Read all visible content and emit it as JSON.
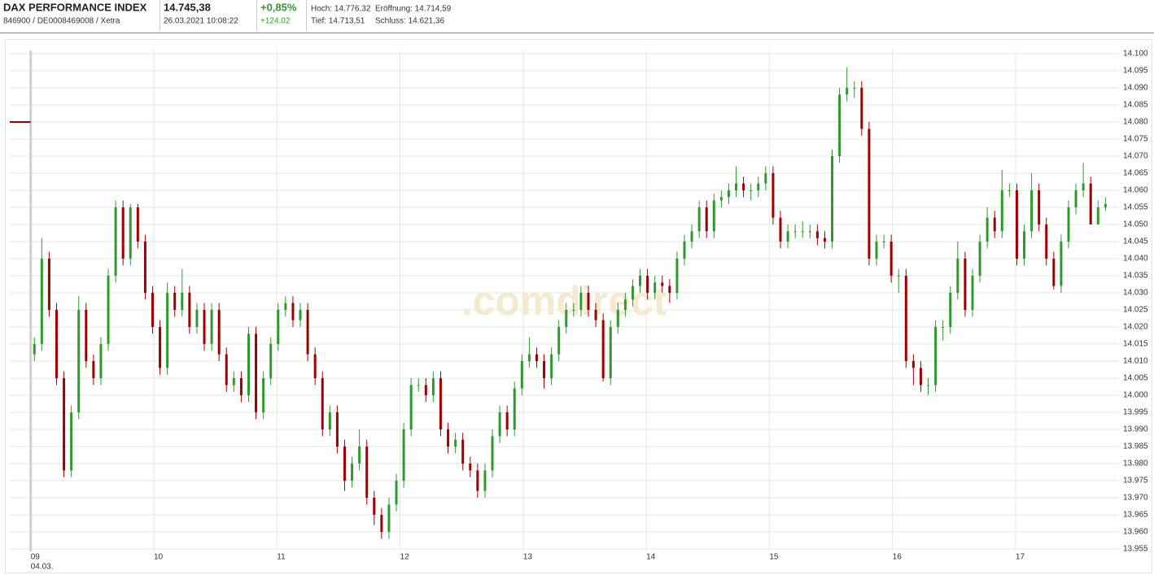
{
  "header": {
    "title": "DAX PERFORMANCE INDEX",
    "subtitle": "846900 / DE0008469008 / Xetra",
    "price": "14.745,38",
    "timestamp": "26.03.2021 10:08:22",
    "change_percent": "+0,85%",
    "change_abs": "+124,02",
    "high": "Hoch: 14.776,32",
    "open": "Eröffnung: 14.714,59",
    "low": "Tief: 14.713,51",
    "close": "Schluss: 14.621,36"
  },
  "chart_data": {
    "type": "candlestick",
    "watermark": ".comdirect",
    "x_start_date": "04.03.",
    "up_color": "#2e9a2e",
    "down_color": "#a00000",
    "grid": true,
    "reference_line": {
      "value": 14080,
      "color": "#a00000"
    },
    "xlim": [
      -0.17,
      8.84
    ],
    "xticks": [
      {
        "value": 0,
        "label": "09"
      },
      {
        "value": 1,
        "label": "10"
      },
      {
        "value": 2,
        "label": "11"
      },
      {
        "value": 3,
        "label": "12"
      },
      {
        "value": 4,
        "label": "13"
      },
      {
        "value": 5,
        "label": "14"
      },
      {
        "value": 6,
        "label": "15"
      },
      {
        "value": 7,
        "label": "16"
      },
      {
        "value": 8,
        "label": "17"
      }
    ],
    "ylim": [
      13955,
      14100
    ],
    "yticks": [
      {
        "value": 13955,
        "label": "13.955"
      },
      {
        "value": 13960,
        "label": "13.960"
      },
      {
        "value": 13965,
        "label": "13.965"
      },
      {
        "value": 13970,
        "label": "13.970"
      },
      {
        "value": 13975,
        "label": "13.975"
      },
      {
        "value": 13980,
        "label": "13.980"
      },
      {
        "value": 13985,
        "label": "13.985"
      },
      {
        "value": 13990,
        "label": "13.990"
      },
      {
        "value": 13995,
        "label": "13.995"
      },
      {
        "value": 14000,
        "label": "14.000"
      },
      {
        "value": 14005,
        "label": "14.005"
      },
      {
        "value": 14010,
        "label": "14.010"
      },
      {
        "value": 14015,
        "label": "14.015"
      },
      {
        "value": 14020,
        "label": "14.020"
      },
      {
        "value": 14025,
        "label": "14.025"
      },
      {
        "value": 14030,
        "label": "14.030"
      },
      {
        "value": 14035,
        "label": "14.035"
      },
      {
        "value": 14040,
        "label": "14.040"
      },
      {
        "value": 14045,
        "label": "14.045"
      },
      {
        "value": 14050,
        "label": "14.050"
      },
      {
        "value": 14055,
        "label": "14.055"
      },
      {
        "value": 14060,
        "label": "14.060"
      },
      {
        "value": 14065,
        "label": "14.065"
      },
      {
        "value": 14070,
        "label": "14.070"
      },
      {
        "value": 14075,
        "label": "14.075"
      },
      {
        "value": 14080,
        "label": "14.080"
      },
      {
        "value": 14085,
        "label": "14.085"
      },
      {
        "value": 14090,
        "label": "14.090"
      },
      {
        "value": 14095,
        "label": "14.095"
      },
      {
        "value": 14100,
        "label": "14.100"
      }
    ],
    "x": [
      0.03,
      0.09,
      0.15,
      0.21,
      0.27,
      0.33,
      0.39,
      0.45,
      0.51,
      0.57,
      0.63,
      0.69,
      0.75,
      0.81,
      0.87,
      0.93,
      0.99,
      1.05,
      1.11,
      1.17,
      1.23,
      1.29,
      1.35,
      1.41,
      1.47,
      1.53,
      1.59,
      1.65,
      1.71,
      1.77,
      1.83,
      1.89,
      1.95,
      2.01,
      2.07,
      2.13,
      2.19,
      2.25,
      2.31,
      2.37,
      2.43,
      2.49,
      2.55,
      2.61,
      2.67,
      2.73,
      2.79,
      2.85,
      2.91,
      2.97,
      3.03,
      3.09,
      3.15,
      3.21,
      3.27,
      3.33,
      3.39,
      3.45,
      3.51,
      3.57,
      3.63,
      3.69,
      3.75,
      3.81,
      3.87,
      3.93,
      3.99,
      4.05,
      4.11,
      4.17,
      4.23,
      4.29,
      4.35,
      4.41,
      4.47,
      4.53,
      4.59,
      4.65,
      4.71,
      4.77,
      4.83,
      4.89,
      4.95,
      5.01,
      5.07,
      5.13,
      5.19,
      5.25,
      5.31,
      5.37,
      5.43,
      5.49,
      5.55,
      5.61,
      5.67,
      5.73,
      5.79,
      5.85,
      5.91,
      5.97,
      6.03,
      6.09,
      6.15,
      6.21,
      6.27,
      6.33,
      6.39,
      6.45,
      6.51,
      6.57,
      6.63,
      6.69,
      6.75,
      6.81,
      6.87,
      6.93,
      6.99,
      7.05,
      7.11,
      7.17,
      7.23,
      7.29,
      7.35,
      7.41,
      7.47,
      7.53,
      7.59,
      7.65,
      7.71,
      7.77,
      7.83,
      7.89,
      7.95,
      8.01,
      8.07,
      8.13,
      8.19,
      8.25,
      8.31,
      8.37,
      8.43,
      8.49,
      8.55,
      8.61,
      8.67,
      8.73
    ],
    "open": [
      14012,
      14015,
      14040,
      14025,
      14005,
      13978,
      13995,
      14025,
      14010,
      14005,
      14015,
      14035,
      14055,
      14040,
      14055,
      14045,
      14030,
      14020,
      14008,
      14030,
      14025,
      14030,
      14020,
      14025,
      14015,
      14025,
      14012,
      14003,
      14005,
      14000,
      14018,
      13995,
      14005,
      14015,
      14025,
      14027,
      14022,
      14025,
      14012,
      14005,
      13990,
      13995,
      13985,
      13975,
      13980,
      13985,
      13970,
      13965,
      13960,
      13968,
      13975,
      13990,
      14003,
      14003,
      14000,
      14005,
      13990,
      13985,
      13987,
      13980,
      13978,
      13972,
      13978,
      13988,
      13995,
      13990,
      14002,
      14010,
      14012,
      14010,
      14005,
      14012,
      14020,
      14025,
      14025,
      14030,
      14025,
      14022,
      14005,
      14020,
      14025,
      14028,
      14032,
      14035,
      14030,
      14033,
      14032,
      14030,
      14040,
      14045,
      14048,
      14055,
      14048,
      14057,
      14058,
      14060,
      14062,
      14060,
      14060,
      14062,
      14065,
      14052,
      14045,
      14048,
      14048,
      14048,
      14048,
      14046,
      14045,
      14070,
      14088,
      14090,
      14090,
      14078,
      14040,
      14045,
      14045,
      14035,
      14035,
      14010,
      14008,
      14003,
      14003,
      14020,
      14020,
      14030,
      14040,
      14025,
      14035,
      14045,
      14052,
      14048,
      14060,
      14060,
      14040,
      14048,
      14060,
      14050,
      14040,
      14032,
      14045,
      14055,
      14060,
      14062,
      14050,
      14055
    ],
    "high": [
      14017,
      14046,
      14042,
      14027,
      14007,
      13997,
      14029,
      14027,
      14012,
      14017,
      14037,
      14057,
      14057,
      14056,
      14056,
      14047,
      14032,
      14022,
      14033,
      14032,
      14037,
      14032,
      14027,
      14027,
      14027,
      14027,
      14014,
      14007,
      14007,
      14020,
      14020,
      14007,
      14017,
      14027,
      14029,
      14029,
      14027,
      14027,
      14014,
      14007,
      13997,
      13997,
      13987,
      13982,
      13990,
      13987,
      13972,
      13967,
      13970,
      13977,
      13992,
      14005,
      14005,
      14005,
      14007,
      14007,
      13992,
      13989,
      13989,
      13982,
      13980,
      13980,
      13990,
      13997,
      13997,
      14004,
      14012,
      14017,
      14014,
      14012,
      14014,
      14022,
      14027,
      14027,
      14032,
      14032,
      14027,
      14024,
      14022,
      14027,
      14030,
      14034,
      14037,
      14037,
      14035,
      14035,
      14034,
      14042,
      14047,
      14050,
      14057,
      14057,
      14059,
      14060,
      14062,
      14067,
      14064,
      14062,
      14064,
      14067,
      14067,
      14054,
      14050,
      14050,
      14051,
      14050,
      14050,
      14048,
      14072,
      14090,
      14096,
      14092,
      14092,
      14080,
      14047,
      14047,
      14047,
      14037,
      14037,
      14012,
      14010,
      14005,
      14022,
      14022,
      14032,
      14045,
      14042,
      14037,
      14047,
      14055,
      14054,
      14066,
      14062,
      14062,
      14050,
      14065,
      14062,
      14052,
      14042,
      14047,
      14057,
      14062,
      14068,
      14064,
      14057,
      14058
    ],
    "low": [
      14010,
      14013,
      14023,
      14003,
      13976,
      13976,
      13993,
      14008,
      14003,
      14003,
      14013,
      14033,
      14038,
      14038,
      14043,
      14028,
      14018,
      14006,
      14006,
      14023,
      14023,
      14018,
      14018,
      14013,
      14013,
      14010,
      14001,
      14001,
      13998,
      13998,
      13993,
      13993,
      14003,
      14013,
      14023,
      14020,
      14020,
      14010,
      14003,
      13988,
      13988,
      13983,
      13972,
      13973,
      13978,
      13968,
      13962,
      13958,
      13958,
      13966,
      13973,
      13988,
      14001,
      13998,
      13998,
      13988,
      13983,
      13983,
      13978,
      13976,
      13970,
      13970,
      13976,
      13986,
      13988,
      13988,
      14000,
      14008,
      14008,
      14002,
      14003,
      14010,
      14018,
      14023,
      14023,
      14023,
      14020,
      14004,
      14003,
      14018,
      14023,
      14026,
      14030,
      14028,
      14028,
      14030,
      14027,
      14028,
      14038,
      14043,
      14046,
      14046,
      14046,
      14055,
      14056,
      14058,
      14058,
      14057,
      14058,
      14060,
      14050,
      14043,
      14043,
      14046,
      14046,
      14046,
      14044,
      14043,
      14043,
      14068,
      14086,
      14087,
      14076,
      14038,
      14038,
      14043,
      14033,
      14030,
      14008,
      14003,
      14001,
      14000,
      14001,
      14016,
      14018,
      14028,
      14023,
      14023,
      14033,
      14043,
      14046,
      14046,
      14058,
      14038,
      14038,
      14046,
      14048,
      14038,
      14031,
      14030,
      14043,
      14053,
      14058,
      14050,
      14050,
      14054
    ],
    "close": [
      14015,
      14040,
      14025,
      14005,
      13978,
      13995,
      14025,
      14010,
      14005,
      14015,
      14035,
      14055,
      14040,
      14055,
      14045,
      14030,
      14020,
      14008,
      14030,
      14025,
      14030,
      14020,
      14025,
      14015,
      14025,
      14012,
      14003,
      14005,
      14000,
      14018,
      13995,
      14005,
      14015,
      14025,
      14027,
      14022,
      14025,
      14012,
      14005,
      13990,
      13995,
      13985,
      13975,
      13980,
      13985,
      13970,
      13965,
      13960,
      13968,
      13975,
      13990,
      14003,
      14003,
      14000,
      14005,
      13990,
      13985,
      13987,
      13980,
      13978,
      13972,
      13978,
      13988,
      13995,
      13990,
      14002,
      14010,
      14012,
      14010,
      14005,
      14012,
      14020,
      14025,
      14025,
      14030,
      14025,
      14022,
      14005,
      14020,
      14025,
      14028,
      14032,
      14035,
      14030,
      14033,
      14032,
      14030,
      14040,
      14045,
      14048,
      14055,
      14048,
      14057,
      14058,
      14060,
      14062,
      14060,
      14060,
      14062,
      14065,
      14052,
      14045,
      14048,
      14048,
      14048,
      14048,
      14046,
      14045,
      14070,
      14088,
      14090,
      14090,
      14078,
      14040,
      14045,
      14045,
      14035,
      14035,
      14010,
      14008,
      14003,
      14003,
      14020,
      14020,
      14030,
      14040,
      14025,
      14035,
      14045,
      14052,
      14048,
      14060,
      14060,
      14040,
      14048,
      14060,
      14050,
      14040,
      14032,
      14045,
      14055,
      14060,
      14062,
      14050,
      14055,
      14056
    ]
  }
}
